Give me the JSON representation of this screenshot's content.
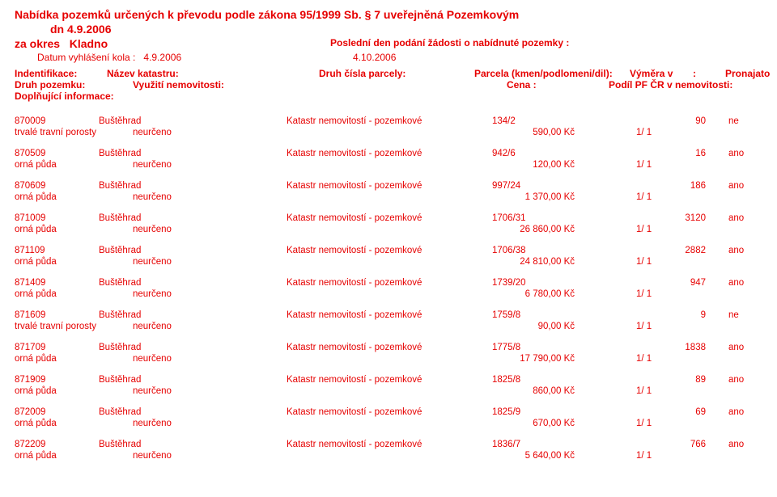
{
  "header": {
    "title": "Nabídka pozemků určených k převodu podle zákona 95/1999 Sb. § 7 uveřejněná Pozemkovým",
    "dn": "dn 4.9.2006",
    "za_okres_label": "za okres",
    "okres": "Kladno",
    "posledni_den": "Poslední den podání žádosti o nabídnuté pozemky :",
    "datum_vyhlaseni_label": "Datum vyhlášení kola :",
    "datum_vyhlaseni": "4.9.2006",
    "uzaverka": "4.10.2006",
    "h_ident": "Indentifikace:",
    "h_nazev": "Název katastru:",
    "h_druh_parc": "Druh čísla parcely:",
    "h_parcela": "Parcela (kmen/podlomeni/dil):",
    "h_vymera": "Výměra v",
    "h_colon": ":",
    "h_pronajato": "Pronajato",
    "h_druh_poz": "Druh pozemku:",
    "h_vyuziti": "Využití nemovitosti:",
    "h_cena": "Cena :",
    "h_podil": "Podíl PF ČR v nemovitosti:",
    "h_dopl": "Doplňující informace:"
  },
  "rows": [
    {
      "id": "870009",
      "kat": "Buštěhrad",
      "typ": "Katastr nemovitostí - pozemkové",
      "parc": "134/2",
      "vym": "90",
      "pron": "ne",
      "druh": "trvalé travní porosty",
      "vyuz": "neurčeno",
      "cena": "590,00 Kč",
      "podil": "1/ 1"
    },
    {
      "id": "870509",
      "kat": "Buštěhrad",
      "typ": "Katastr nemovitostí - pozemkové",
      "parc": "942/6",
      "vym": "16",
      "pron": "ano",
      "druh": "orná půda",
      "vyuz": "neurčeno",
      "cena": "120,00 Kč",
      "podil": "1/ 1"
    },
    {
      "id": "870609",
      "kat": "Buštěhrad",
      "typ": "Katastr nemovitostí - pozemkové",
      "parc": "997/24",
      "vym": "186",
      "pron": "ano",
      "druh": "orná půda",
      "vyuz": "neurčeno",
      "cena": "1 370,00 Kč",
      "podil": "1/ 1"
    },
    {
      "id": "871009",
      "kat": "Buštěhrad",
      "typ": "Katastr nemovitostí - pozemkové",
      "parc": "1706/31",
      "vym": "3120",
      "pron": "ano",
      "druh": "orná půda",
      "vyuz": "neurčeno",
      "cena": "26 860,00 Kč",
      "podil": "1/ 1"
    },
    {
      "id": "871109",
      "kat": "Buštěhrad",
      "typ": "Katastr nemovitostí - pozemkové",
      "parc": "1706/38",
      "vym": "2882",
      "pron": "ano",
      "druh": "orná půda",
      "vyuz": "neurčeno",
      "cena": "24 810,00 Kč",
      "podil": "1/ 1"
    },
    {
      "id": "871409",
      "kat": "Buštěhrad",
      "typ": "Katastr nemovitostí - pozemkové",
      "parc": "1739/20",
      "vym": "947",
      "pron": "ano",
      "druh": "orná půda",
      "vyuz": "neurčeno",
      "cena": "6 780,00 Kč",
      "podil": "1/ 1"
    },
    {
      "id": "871609",
      "kat": "Buštěhrad",
      "typ": "Katastr nemovitostí - pozemkové",
      "parc": "1759/8",
      "vym": "9",
      "pron": "ne",
      "druh": "trvalé travní porosty",
      "vyuz": "neurčeno",
      "cena": "90,00 Kč",
      "podil": "1/ 1"
    },
    {
      "id": "871709",
      "kat": "Buštěhrad",
      "typ": "Katastr nemovitostí - pozemkové",
      "parc": "1775/8",
      "vym": "1838",
      "pron": "ano",
      "druh": "orná půda",
      "vyuz": "neurčeno",
      "cena": "17 790,00 Kč",
      "podil": "1/ 1"
    },
    {
      "id": "871909",
      "kat": "Buštěhrad",
      "typ": "Katastr nemovitostí - pozemkové",
      "parc": "1825/8",
      "vym": "89",
      "pron": "ano",
      "druh": "orná půda",
      "vyuz": "neurčeno",
      "cena": "860,00 Kč",
      "podil": "1/ 1"
    },
    {
      "id": "872009",
      "kat": "Buštěhrad",
      "typ": "Katastr nemovitostí - pozemkové",
      "parc": "1825/9",
      "vym": "69",
      "pron": "ano",
      "druh": "orná půda",
      "vyuz": "neurčeno",
      "cena": "670,00 Kč",
      "podil": "1/ 1"
    },
    {
      "id": "872209",
      "kat": "Buštěhrad",
      "typ": "Katastr nemovitostí - pozemkové",
      "parc": "1836/7",
      "vym": "766",
      "pron": "ano",
      "druh": "orná půda",
      "vyuz": "neurčeno",
      "cena": "5 640,00 Kč",
      "podil": "1/ 1"
    }
  ]
}
